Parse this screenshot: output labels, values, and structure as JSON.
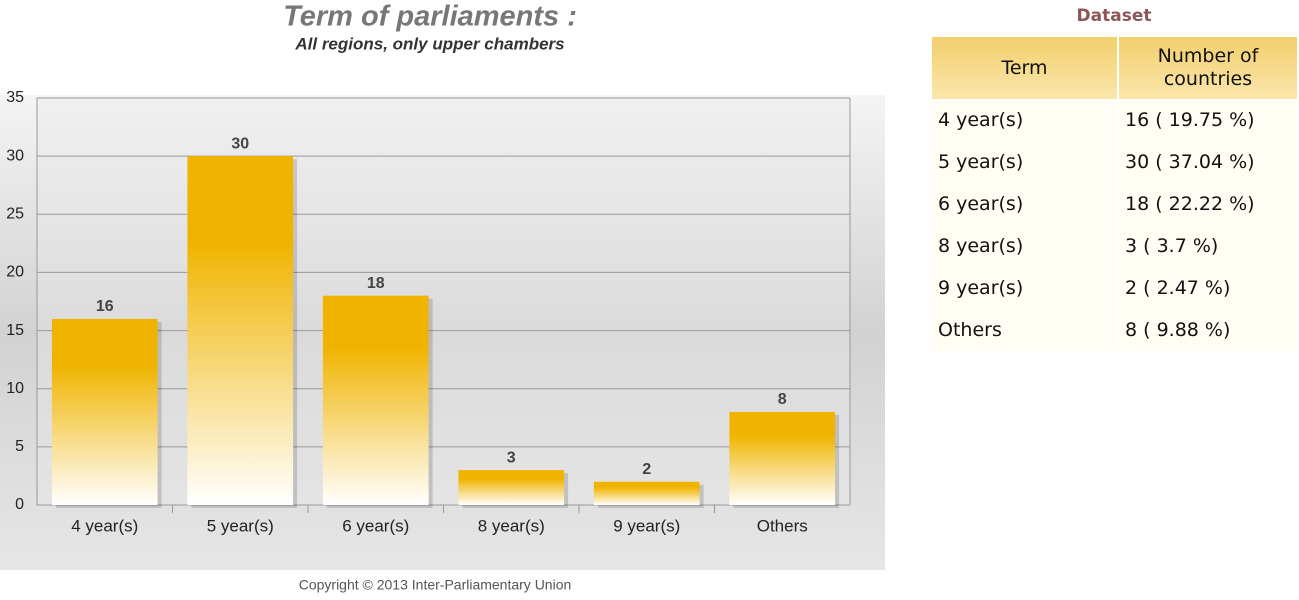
{
  "chart_data": {
    "type": "bar",
    "title": "Term of parliaments :",
    "subtitle": "All regions, only upper chambers",
    "categories": [
      "4 year(s)",
      "5 year(s)",
      "6 year(s)",
      "8 year(s)",
      "9 year(s)",
      "Others"
    ],
    "values": [
      16,
      30,
      18,
      3,
      2,
      8
    ],
    "color": "#f0b400",
    "ylim": [
      0,
      35
    ],
    "yticks": [
      0,
      5,
      10,
      15,
      20,
      25,
      30,
      35
    ],
    "grid": true,
    "source": "Copyright © 2013 Inter-Parliamentary Union"
  },
  "table": {
    "title": "Dataset",
    "columns": [
      "Term",
      "Number of countries"
    ],
    "rows": [
      [
        "4 year(s)",
        "16 ( 19.75 %)"
      ],
      [
        "5 year(s)",
        "30 ( 37.04 %)"
      ],
      [
        "6 year(s)",
        "18 ( 22.22 %)"
      ],
      [
        "8 year(s)",
        "3 ( 3.7 %)"
      ],
      [
        "9 year(s)",
        "2 ( 2.47 %)"
      ],
      [
        "Others",
        "8 ( 9.88 %)"
      ]
    ]
  }
}
